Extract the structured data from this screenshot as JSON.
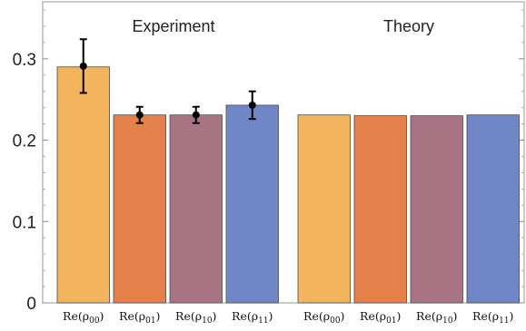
{
  "chart_data": {
    "type": "bar",
    "groups": [
      {
        "title": "Experiment",
        "categories": [
          "Re(ρ00)",
          "Re(ρ01)",
          "Re(ρ10)",
          "Re(ρ11)"
        ],
        "values": [
          0.29,
          0.231,
          0.231,
          0.243
        ],
        "points": [
          0.291,
          0.231,
          0.231,
          0.243
        ],
        "error_low": [
          0.258,
          0.221,
          0.221,
          0.226
        ],
        "error_high": [
          0.324,
          0.241,
          0.241,
          0.26
        ]
      },
      {
        "title": "Theory",
        "categories": [
          "Re(ρ00)",
          "Re(ρ01)",
          "Re(ρ10)",
          "Re(ρ11)"
        ],
        "values": [
          0.231,
          0.23,
          0.23,
          0.231
        ]
      }
    ],
    "colors": [
      "#f4b35d",
      "#e5804a",
      "#a97585",
      "#6f87c6"
    ],
    "ylim": [
      0,
      0.37
    ],
    "yticks": [
      0,
      0.1,
      0.2,
      0.3
    ],
    "ytick_labels": [
      "0",
      "0.1",
      "0.2",
      "0.3"
    ],
    "grid": false
  }
}
